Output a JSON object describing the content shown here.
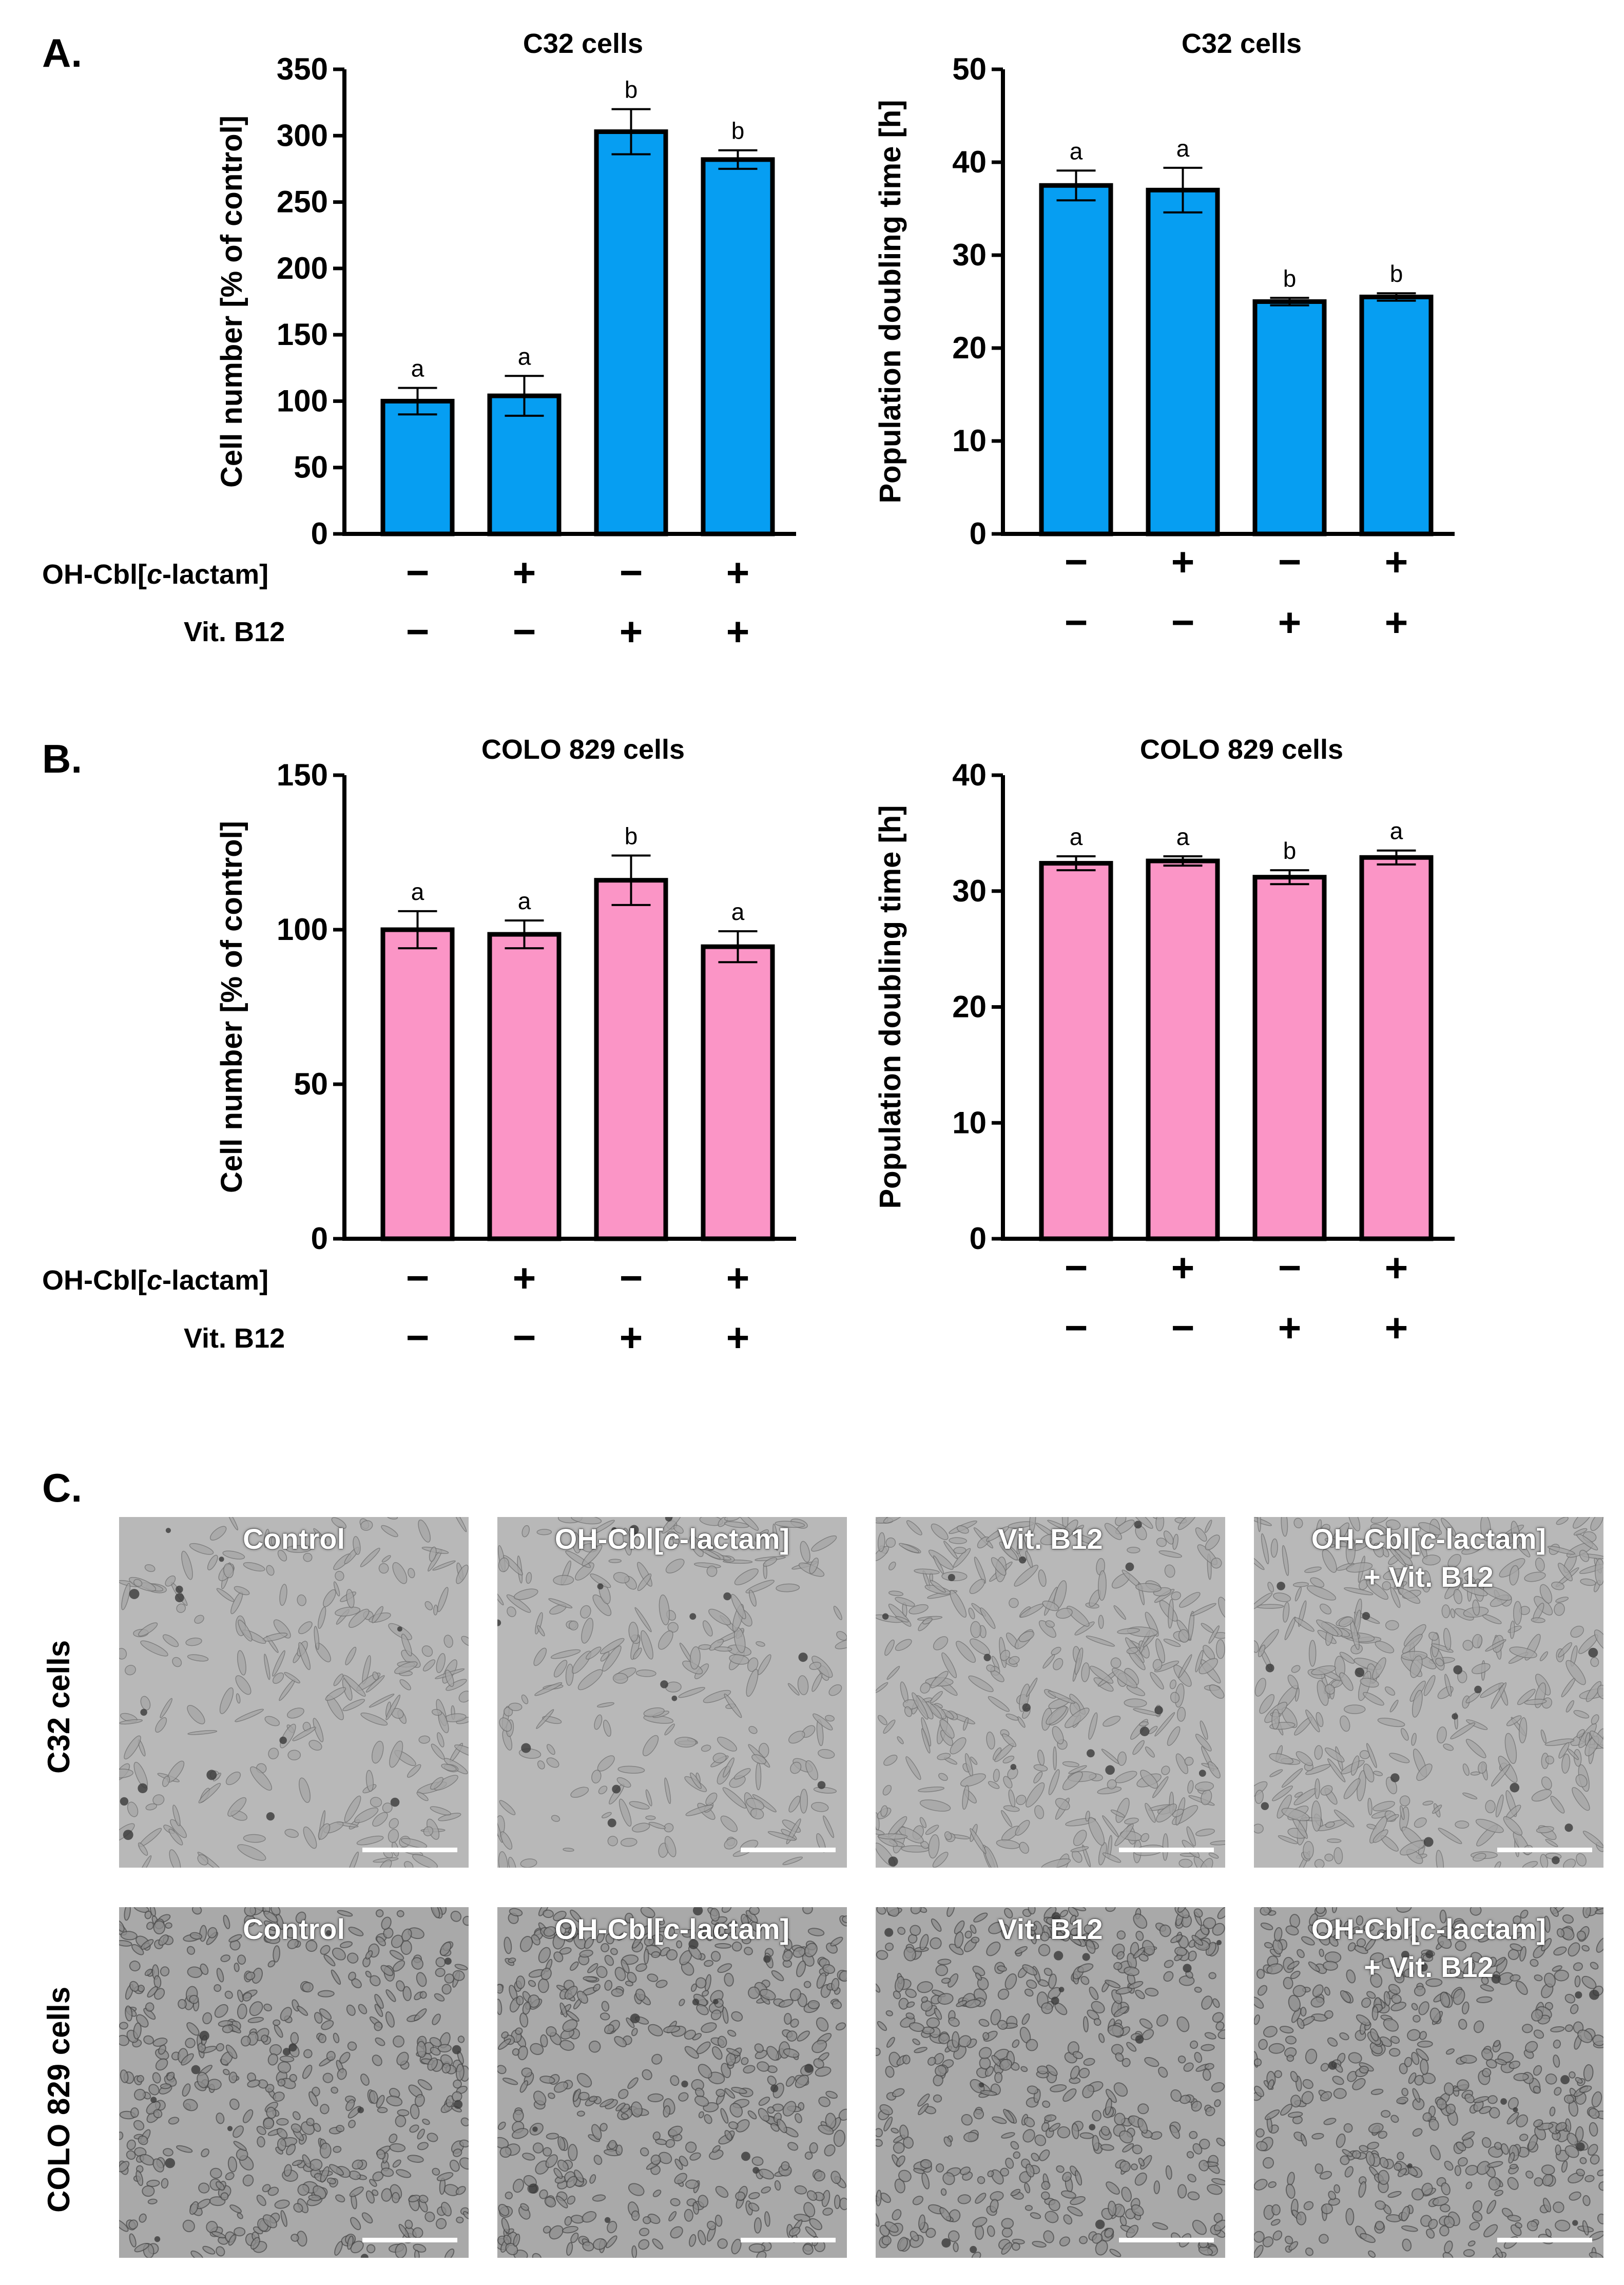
{
  "panels": {
    "a": "A.",
    "b": "B.",
    "c": "C."
  },
  "colors": {
    "blue": "#069ef2",
    "pink": "#fb95c6"
  },
  "treatment_labels": {
    "oh_prefix": "OH-Cbl[",
    "oh_italic": "c",
    "oh_suffix": "-lactam]",
    "vitb12": "Vit. B12"
  },
  "signs": {
    "oh": [
      "−",
      "+",
      "−",
      "+"
    ],
    "vitb12": [
      "−",
      "−",
      "+",
      "+"
    ]
  },
  "chart_data": [
    {
      "type": "bar",
      "id": "A-cellnumber",
      "title": "C32 cells",
      "ylabel": "Cell number [% of control]",
      "ylim": [
        0,
        350
      ],
      "yticks": [
        0,
        50,
        100,
        150,
        200,
        250,
        300,
        350
      ],
      "categories": [
        "Control",
        "OH-Cbl[c-lactam]",
        "Vit. B12",
        "OH-Cbl[c-lactam] + Vit. B12"
      ],
      "values": [
        100,
        104,
        303,
        282
      ],
      "errors": [
        10,
        15,
        17,
        7
      ],
      "letters": [
        "a",
        "a",
        "b",
        "b"
      ],
      "color": "blue"
    },
    {
      "type": "bar",
      "id": "A-doubling",
      "title": "C32 cells",
      "ylabel": "Population doubling time [h]",
      "ylim": [
        0,
        50
      ],
      "yticks": [
        0,
        10,
        20,
        30,
        40,
        50
      ],
      "categories": [
        "Control",
        "OH-Cbl[c-lactam]",
        "Vit. B12",
        "OH-Cbl[c-lactam] + Vit. B12"
      ],
      "values": [
        37.5,
        37.0,
        25.0,
        25.5
      ],
      "errors": [
        1.6,
        2.4,
        0.4,
        0.4
      ],
      "letters": [
        "a",
        "a",
        "b",
        "b"
      ],
      "color": "blue"
    },
    {
      "type": "bar",
      "id": "B-cellnumber",
      "title": "COLO 829 cells",
      "ylabel": "Cell number [% of control]",
      "ylim": [
        0,
        150
      ],
      "yticks": [
        0,
        50,
        100,
        150
      ],
      "categories": [
        "Control",
        "OH-Cbl[c-lactam]",
        "Vit. B12",
        "OH-Cbl[c-lactam] + Vit. B12"
      ],
      "values": [
        100,
        98.5,
        116,
        94.5
      ],
      "errors": [
        6,
        4.5,
        8,
        5
      ],
      "letters": [
        "a",
        "a",
        "b",
        "a"
      ],
      "color": "pink"
    },
    {
      "type": "bar",
      "id": "B-doubling",
      "title": "COLO 829 cells",
      "ylabel": "Population doubling time [h]",
      "ylim": [
        0,
        40
      ],
      "yticks": [
        0,
        10,
        20,
        30,
        40
      ],
      "categories": [
        "Control",
        "OH-Cbl[c-lactam]",
        "Vit. B12",
        "OH-Cbl[c-lactam] + Vit. B12"
      ],
      "values": [
        32.4,
        32.6,
        31.2,
        32.9
      ],
      "errors": [
        0.6,
        0.4,
        0.6,
        0.6
      ],
      "letters": [
        "a",
        "a",
        "b",
        "a"
      ],
      "color": "pink"
    }
  ],
  "micrographs": {
    "row_labels": [
      "C32 cells",
      "COLO 829 cells"
    ],
    "columns": [
      {
        "line1": "Control",
        "line2": ""
      },
      {
        "line1_prefix": "OH-Cbl[",
        "line1_italic": "c",
        "line1_suffix": "-lactam]",
        "line2": ""
      },
      {
        "line1": "Vit. B12",
        "line2": ""
      },
      {
        "line1_prefix": "OH-Cbl[",
        "line1_italic": "c",
        "line1_suffix": "-lactam]",
        "line2": "+ Vit. B12"
      }
    ]
  }
}
